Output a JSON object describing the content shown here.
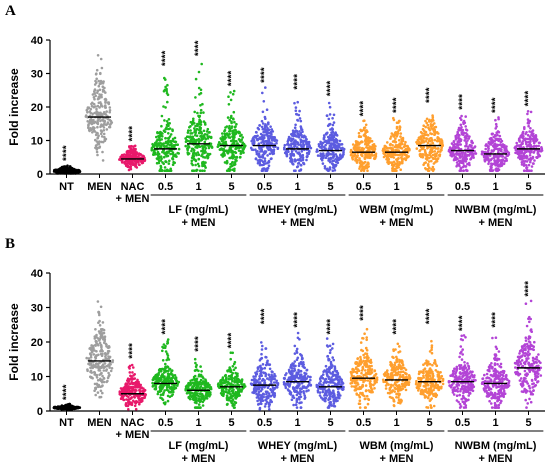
{
  "chart_data": [
    {
      "type": "scatter",
      "panel_label": "A",
      "ylabel": "Fold increase",
      "ylim": [
        0,
        40
      ],
      "yticks": [
        "0",
        "10",
        "20",
        "30",
        "40"
      ],
      "categories": [
        "NT",
        "MEN",
        "NAC\n+ MEN",
        "0.5",
        "1",
        "5",
        "0.5",
        "1",
        "5",
        "0.5",
        "1",
        "5",
        "0.5",
        "1",
        "5"
      ],
      "group_labels": [
        {
          "line1": "LF (mg/mL)",
          "line2": "+ MEN",
          "from": 3,
          "to": 5
        },
        {
          "line1": "WHEY (mg/mL)",
          "line2": "+ MEN",
          "from": 6,
          "to": 8
        },
        {
          "line1": "WBM (mg/mL)",
          "line2": "+ MEN",
          "from": 9,
          "to": 11
        },
        {
          "line1": "NWBM (mg/mL)",
          "line2": "+ MEN",
          "from": 12,
          "to": 14
        }
      ],
      "significance": "****",
      "series": [
        {
          "category": "NT",
          "mean": 0.8,
          "min": 0.2,
          "max": 2.7,
          "spread": 0.6,
          "color": "#000000",
          "sig": true
        },
        {
          "category": "MEN",
          "mean": 17,
          "min": 4,
          "max": 36,
          "spread": 4.5,
          "color": "#9e9e9e",
          "sig": false
        },
        {
          "category": "NAC + MEN",
          "mean": 4.5,
          "min": 1.0,
          "max": 8.5,
          "spread": 1.3,
          "color": "#e8196b",
          "sig": true
        },
        {
          "category": "LF 0.5",
          "mean": 7.5,
          "min": 1.0,
          "max": 31,
          "spread": 4.0,
          "color": "#1fb81f",
          "sig": true
        },
        {
          "category": "LF 1",
          "mean": 9.0,
          "min": 1.0,
          "max": 34,
          "spread": 5.0,
          "color": "#1fb81f",
          "sig": true
        },
        {
          "category": "LF 5",
          "mean": 8.5,
          "min": 1.0,
          "max": 25,
          "spread": 3.5,
          "color": "#1fb81f",
          "sig": true
        },
        {
          "category": "WHEY 0.5",
          "mean": 8.5,
          "min": 1.0,
          "max": 26,
          "spread": 3.5,
          "color": "#5c5ce0",
          "sig": true
        },
        {
          "category": "WHEY 1",
          "mean": 7.5,
          "min": 1.0,
          "max": 24,
          "spread": 3.0,
          "color": "#5c5ce0",
          "sig": true
        },
        {
          "category": "WHEY 5",
          "mean": 7.0,
          "min": 1.0,
          "max": 22,
          "spread": 3.0,
          "color": "#5c5ce0",
          "sig": true
        },
        {
          "category": "WBM 0.5",
          "mean": 6.5,
          "min": 1.0,
          "max": 16,
          "spread": 2.8,
          "color": "#ff9f2e",
          "sig": true
        },
        {
          "category": "WBM 1",
          "mean": 6.5,
          "min": 1.0,
          "max": 17,
          "spread": 2.8,
          "color": "#ff9f2e",
          "sig": true
        },
        {
          "category": "WBM 5",
          "mean": 8.5,
          "min": 1.0,
          "max": 20,
          "spread": 3.5,
          "color": "#ff9f2e",
          "sig": true
        },
        {
          "category": "NWBM 0.5",
          "mean": 7.0,
          "min": 1.0,
          "max": 18,
          "spread": 3.0,
          "color": "#b344d6",
          "sig": true
        },
        {
          "category": "NWBM 1",
          "mean": 6.0,
          "min": 1.0,
          "max": 17,
          "spread": 2.8,
          "color": "#b344d6",
          "sig": true
        },
        {
          "category": "NWBM 5",
          "mean": 7.5,
          "min": 1.0,
          "max": 19,
          "spread": 3.0,
          "color": "#b344d6",
          "sig": true
        }
      ]
    },
    {
      "type": "scatter",
      "panel_label": "B",
      "ylabel": "Fold increase",
      "ylim": [
        0,
        40
      ],
      "yticks": [
        "0",
        "10",
        "20",
        "30",
        "40"
      ],
      "categories": [
        "NT",
        "MEN",
        "NAC\n+ MEN",
        "0.5",
        "1",
        "5",
        "0.5",
        "1",
        "5",
        "0.5",
        "1",
        "5",
        "0.5",
        "1",
        "5"
      ],
      "group_labels": [
        {
          "line1": "LF (mg/mL)",
          "line2": "+ MEN",
          "from": 3,
          "to": 5
        },
        {
          "line1": "WHEY (mg/mL)",
          "line2": "+ MEN",
          "from": 6,
          "to": 8
        },
        {
          "line1": "WBM (mg/mL)",
          "line2": "+ MEN",
          "from": 9,
          "to": 11
        },
        {
          "line1": "NWBM (mg/mL)",
          "line2": "+ MEN",
          "from": 12,
          "to": 14
        }
      ],
      "significance": "****",
      "series": [
        {
          "category": "NT",
          "mean": 1.0,
          "min": 0.5,
          "max": 2.0,
          "spread": 0.3,
          "color": "#000000",
          "sig": true
        },
        {
          "category": "MEN",
          "mean": 14.5,
          "min": 4,
          "max": 33,
          "spread": 4.5,
          "color": "#9e9e9e",
          "sig": false
        },
        {
          "category": "NAC + MEN",
          "mean": 5.0,
          "min": 0.5,
          "max": 14,
          "spread": 2.2,
          "color": "#e8196b",
          "sig": true
        },
        {
          "category": "LF 0.5",
          "mean": 8.0,
          "min": 2.0,
          "max": 21,
          "spread": 2.5,
          "color": "#1fb81f",
          "sig": true
        },
        {
          "category": "LF 1",
          "mean": 6.0,
          "min": 1.0,
          "max": 16,
          "spread": 2.2,
          "color": "#1fb81f",
          "sig": true
        },
        {
          "category": "LF 5",
          "mean": 7.0,
          "min": 1.0,
          "max": 17,
          "spread": 2.5,
          "color": "#1fb81f",
          "sig": true
        },
        {
          "category": "WHEY 0.5",
          "mean": 7.5,
          "min": 0.5,
          "max": 24,
          "spread": 3.5,
          "color": "#5c5ce0",
          "sig": true
        },
        {
          "category": "WHEY 1",
          "mean": 8.5,
          "min": 1.0,
          "max": 23,
          "spread": 3.5,
          "color": "#5c5ce0",
          "sig": true
        },
        {
          "category": "WHEY 5",
          "mean": 7.0,
          "min": 1.0,
          "max": 21,
          "spread": 3.0,
          "color": "#5c5ce0",
          "sig": true
        },
        {
          "category": "WBM 0.5",
          "mean": 9.5,
          "min": 1.0,
          "max": 25,
          "spread": 3.8,
          "color": "#ff9f2e",
          "sig": true
        },
        {
          "category": "WBM 1",
          "mean": 9.0,
          "min": 1.0,
          "max": 21,
          "spread": 3.2,
          "color": "#ff9f2e",
          "sig": true
        },
        {
          "category": "WBM 5",
          "mean": 8.5,
          "min": 1.0,
          "max": 24,
          "spread": 3.5,
          "color": "#ff9f2e",
          "sig": true
        },
        {
          "category": "NWBM 0.5",
          "mean": 8.5,
          "min": 1.0,
          "max": 22,
          "spread": 3.2,
          "color": "#b344d6",
          "sig": true
        },
        {
          "category": "NWBM 1",
          "mean": 8.0,
          "min": 1.0,
          "max": 23,
          "spread": 3.2,
          "color": "#b344d6",
          "sig": true
        },
        {
          "category": "NWBM 5",
          "mean": 12.5,
          "min": 1.0,
          "max": 32,
          "spread": 4.5,
          "color": "#b344d6",
          "sig": true
        }
      ]
    }
  ]
}
